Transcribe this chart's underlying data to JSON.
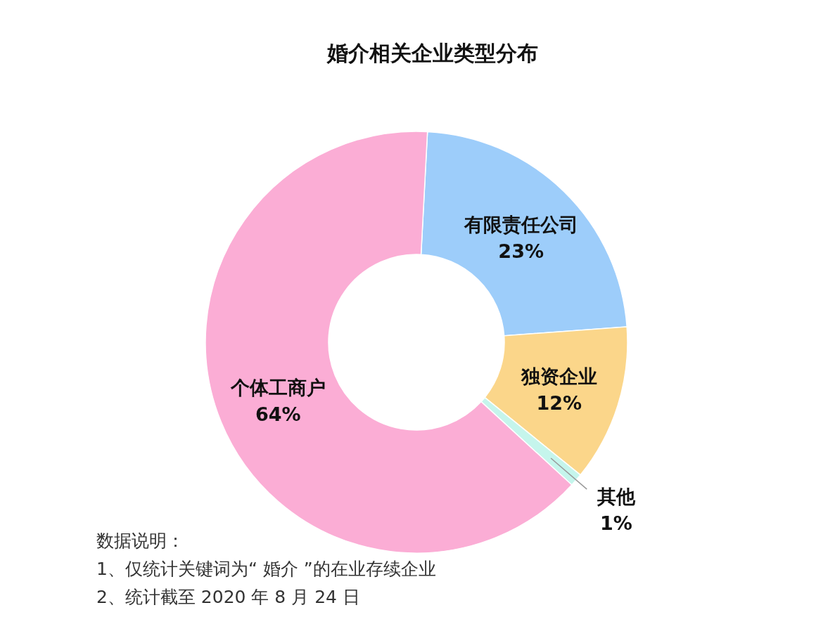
{
  "chart_data": {
    "type": "donut",
    "title": "婚介相关企业类型分布",
    "categories": [
      "有限责任公司",
      "独资企业",
      "其他",
      "个体工商户"
    ],
    "values": [
      23,
      12,
      1,
      64
    ],
    "colors": [
      "#9dcdfa",
      "#fbd68a",
      "#c5f5ec",
      "#fbadd5"
    ],
    "value_labels": [
      "23%",
      "12%",
      "1%",
      "64%"
    ],
    "annotations": [
      "数据说明：",
      "1、仅统计关键词为“ 婚介 ”的在业存续企业",
      "2、统计截至 2020 年 8 月 24 日"
    ]
  }
}
